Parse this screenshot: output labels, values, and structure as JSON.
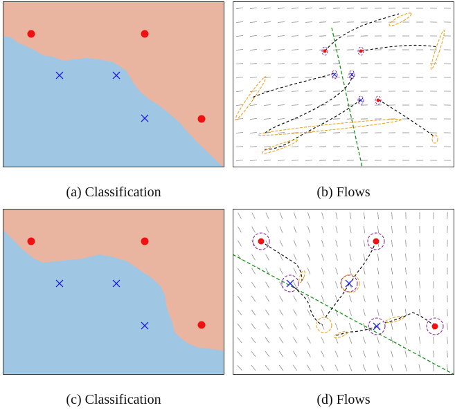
{
  "figure": {
    "panels": [
      {
        "caption": "(a) Classification",
        "kind": "classification"
      },
      {
        "caption": "(b) Flows",
        "kind": "flows"
      },
      {
        "caption": "(c) Classification",
        "kind": "classification"
      },
      {
        "caption": "(d) Flows",
        "kind": "flows"
      }
    ],
    "colors": {
      "region_red": "#e9b4a0",
      "region_blue": "#9fc7e3",
      "dot": "#ee1111",
      "cross": "#2323dd",
      "boundary": "#169316",
      "path": "#111111",
      "start_ellipse": "#8a2a9a",
      "end_ellipse": "#f0a020",
      "arrow": "#8c8c8c"
    }
  }
}
